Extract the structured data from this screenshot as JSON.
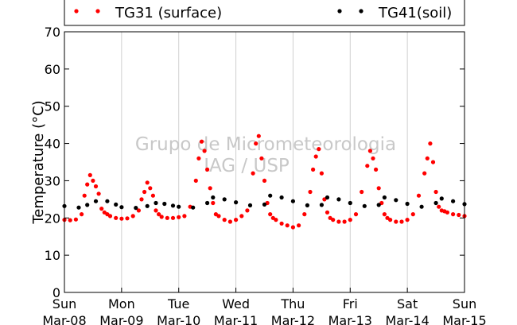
{
  "chart_data": {
    "type": "scatter",
    "ylabel": "Temperature (°C)",
    "xlabel": "",
    "ylim": [
      0,
      70
    ],
    "yticks": [
      0,
      10,
      20,
      30,
      40,
      50,
      60,
      70
    ],
    "xlim": [
      0,
      7
    ],
    "xticks": [
      {
        "pos": 0,
        "day": "Sun",
        "date": "Mar-08"
      },
      {
        "pos": 1,
        "day": "Mon",
        "date": "Mar-09"
      },
      {
        "pos": 2,
        "day": "Tue",
        "date": "Mar-10"
      },
      {
        "pos": 3,
        "day": "Wed",
        "date": "Mar-11"
      },
      {
        "pos": 4,
        "day": "Thu",
        "date": "Mar-12"
      },
      {
        "pos": 5,
        "day": "Fri",
        "date": "Mar-13"
      },
      {
        "pos": 6,
        "day": "Sat",
        "date": "Mar-14"
      },
      {
        "pos": 7,
        "day": "Sun",
        "date": "Mar-15"
      }
    ],
    "grid": "vertical",
    "legend_position": "top",
    "watermark": [
      "Grupo de Micrometeorologia",
      "IAG / USP"
    ],
    "series": [
      {
        "name": "TG31 (surface)",
        "color": "#ff0000",
        "x": [
          0,
          0.1,
          0.2,
          0.3,
          0.35,
          0.4,
          0.45,
          0.5,
          0.55,
          0.6,
          0.65,
          0.7,
          0.75,
          0.8,
          0.9,
          1.0,
          1.1,
          1.2,
          1.3,
          1.35,
          1.4,
          1.45,
          1.5,
          1.55,
          1.6,
          1.65,
          1.7,
          1.8,
          1.9,
          2.0,
          2.1,
          2.2,
          2.3,
          2.35,
          2.4,
          2.45,
          2.5,
          2.55,
          2.6,
          2.65,
          2.7,
          2.8,
          2.9,
          3.0,
          3.1,
          3.2,
          3.3,
          3.35,
          3.4,
          3.45,
          3.5,
          3.55,
          3.6,
          3.65,
          3.7,
          3.8,
          3.9,
          4.0,
          4.1,
          4.2,
          4.3,
          4.35,
          4.4,
          4.45,
          4.5,
          4.55,
          4.6,
          4.65,
          4.7,
          4.8,
          4.9,
          5.0,
          5.1,
          5.2,
          5.3,
          5.35,
          5.4,
          5.45,
          5.5,
          5.55,
          5.6,
          5.65,
          5.7,
          5.8,
          5.9,
          6.0,
          6.1,
          6.2,
          6.3,
          6.35,
          6.4,
          6.45,
          6.5,
          6.55,
          6.6,
          6.65,
          6.7,
          6.8,
          6.9,
          7.0
        ],
        "y": [
          19.5,
          19.4,
          19.6,
          21.0,
          26.0,
          29.0,
          31.5,
          30.0,
          28.5,
          26.5,
          22.5,
          21.5,
          21.0,
          20.5,
          20.0,
          19.8,
          19.9,
          20.5,
          22.0,
          25.0,
          27.0,
          29.5,
          28.0,
          26.0,
          22.0,
          21.0,
          20.3,
          20.0,
          20.0,
          20.2,
          20.5,
          23.0,
          30.0,
          36.0,
          40.5,
          38.0,
          33.0,
          28.0,
          24.0,
          21.0,
          20.5,
          19.5,
          19.0,
          19.5,
          20.5,
          22.0,
          32.0,
          40.0,
          42.0,
          36.0,
          30.0,
          24.0,
          21.0,
          20.0,
          19.5,
          18.5,
          18.0,
          17.5,
          18.0,
          21.0,
          27.0,
          33.0,
          36.5,
          38.5,
          32.0,
          25.0,
          21.5,
          20.0,
          19.5,
          19.0,
          19.0,
          19.5,
          21.0,
          27.0,
          34.0,
          38.0,
          36.0,
          33.0,
          28.0,
          24.0,
          21.0,
          20.0,
          19.5,
          19.0,
          19.0,
          19.5,
          21.0,
          26.0,
          32.0,
          36.0,
          40.0,
          35.0,
          27.0,
          23.0,
          22.0,
          21.8,
          21.5,
          21.0,
          20.8,
          20.5
        ]
      },
      {
        "name": "TG41(soil)",
        "color": "#000000",
        "x": [
          0,
          0.25,
          0.4,
          0.55,
          0.75,
          0.9,
          1.0,
          1.25,
          1.45,
          1.6,
          1.75,
          1.9,
          2.0,
          2.25,
          2.5,
          2.6,
          2.8,
          3.0,
          3.25,
          3.5,
          3.6,
          3.8,
          4.0,
          4.25,
          4.5,
          4.6,
          4.8,
          5.0,
          5.25,
          5.5,
          5.6,
          5.8,
          6.0,
          6.25,
          6.5,
          6.6,
          6.8,
          7.0
        ],
        "y": [
          23.2,
          22.8,
          23.5,
          24.5,
          24.5,
          23.6,
          22.9,
          22.7,
          23.2,
          24.0,
          23.8,
          23.3,
          23.0,
          22.8,
          24.0,
          25.5,
          25.0,
          24.2,
          23.4,
          23.6,
          26.0,
          25.5,
          24.5,
          23.4,
          23.5,
          25.5,
          25.0,
          24.0,
          23.2,
          23.5,
          25.5,
          24.8,
          23.8,
          23.0,
          24.0,
          25.2,
          24.5,
          23.7
        ]
      }
    ]
  }
}
